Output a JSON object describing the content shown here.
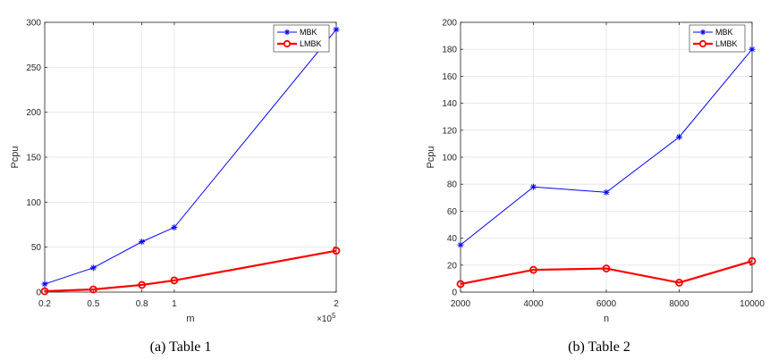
{
  "chart_data": [
    {
      "type": "line",
      "caption": "(a) Table 1",
      "xlabel": "m",
      "ylabel": "Pcpu",
      "x_exponent_label": "×10",
      "x_exponent": "5",
      "x": [
        0.2,
        0.5,
        0.8,
        1,
        2
      ],
      "x_tick_labels": [
        "0.2",
        "0.5",
        "0.8",
        "1",
        "2"
      ],
      "xlim": [
        0.2,
        2
      ],
      "ylim": [
        0,
        300
      ],
      "y_ticks": [
        0,
        50,
        100,
        150,
        200,
        250,
        300
      ],
      "grid": true,
      "legend_position": "top-right",
      "series": [
        {
          "name": "MBK",
          "color": "#0000ff",
          "marker": "asterisk",
          "values": [
            9,
            27,
            56,
            72,
            292
          ]
        },
        {
          "name": "LMBK",
          "color": "#ff0000",
          "marker": "circle",
          "values": [
            1,
            3,
            8,
            13,
            46
          ]
        }
      ]
    },
    {
      "type": "line",
      "caption": "(b) Table 2",
      "xlabel": "n",
      "ylabel": "Pcpu",
      "x": [
        2000,
        4000,
        6000,
        8000,
        10000
      ],
      "x_tick_labels": [
        "2000",
        "4000",
        "6000",
        "8000",
        "10000"
      ],
      "xlim": [
        2000,
        10000
      ],
      "ylim": [
        0,
        200
      ],
      "y_ticks": [
        0,
        20,
        40,
        60,
        80,
        100,
        120,
        140,
        160,
        180,
        200
      ],
      "grid": true,
      "legend_position": "top-right",
      "series": [
        {
          "name": "MBK",
          "color": "#0000ff",
          "marker": "asterisk",
          "values": [
            35,
            78,
            74,
            115,
            180
          ]
        },
        {
          "name": "LMBK",
          "color": "#ff0000",
          "marker": "circle",
          "values": [
            6,
            16.5,
            17.5,
            7,
            23
          ]
        }
      ]
    }
  ]
}
